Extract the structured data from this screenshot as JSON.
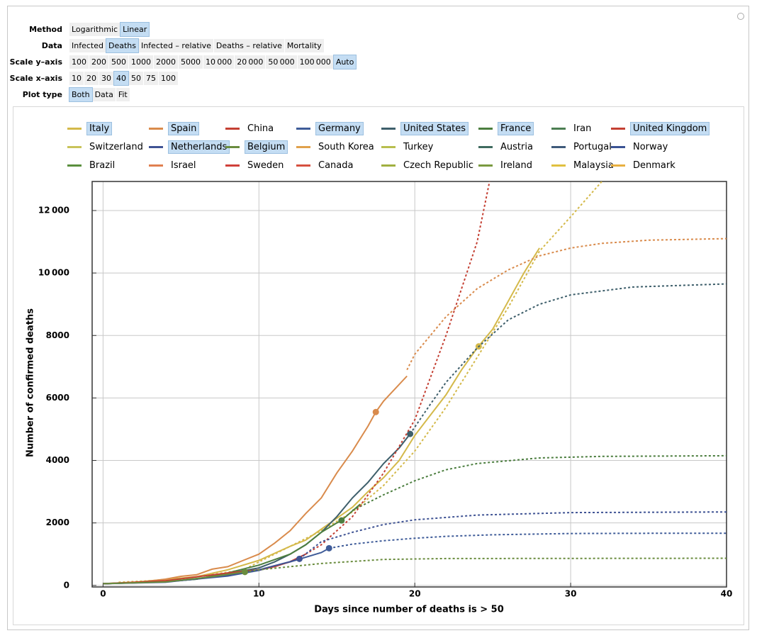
{
  "controls": [
    {
      "label": "Method",
      "options": [
        "Logarithmic",
        "Linear"
      ],
      "selected": 1
    },
    {
      "label": "Data",
      "options": [
        "Infected",
        "Deaths",
        "Infected – relative",
        "Deaths – relative",
        "Mortality"
      ],
      "selected": 1
    },
    {
      "label": "Scale y–axis",
      "options": [
        "100",
        "200",
        "500",
        "1000",
        "2000",
        "5000",
        "10 000",
        "20 000",
        "50 000",
        "100 000",
        "Auto"
      ],
      "selected": 10
    },
    {
      "label": "Scale x–axis",
      "options": [
        "10",
        "20",
        "30",
        "40",
        "50",
        "75",
        "100"
      ],
      "selected": 3
    },
    {
      "label": "Plot type",
      "options": [
        "Both",
        "Data",
        "Fit"
      ],
      "selected": 0
    }
  ],
  "chart_data": {
    "type": "line",
    "x_label": "Days since number of deaths is > 50",
    "y_label": "Number of confirmed deaths",
    "xlim": [
      -0.7,
      40
    ],
    "xticks": [
      0,
      10,
      20,
      30,
      40
    ],
    "ylim": [
      -50,
      12930
    ],
    "yticks": [
      0,
      2000,
      4000,
      6000,
      8000,
      {
        "value": 10000,
        "label": "10 000"
      },
      {
        "value": 12000,
        "label": "12 000"
      }
    ],
    "grid": true,
    "series": [
      {
        "name": "Italy",
        "color": "#d4b94a",
        "selected": true,
        "x": [
          0,
          2,
          4,
          6,
          8,
          10,
          12,
          13,
          14,
          15,
          16,
          17,
          18,
          19,
          20,
          21,
          22,
          23,
          24,
          25,
          26,
          27,
          28
        ],
        "values": [
          55,
          100,
          190,
          280,
          500,
          800,
          1250,
          1450,
          1800,
          2150,
          2500,
          3000,
          3450,
          4000,
          4800,
          5450,
          6100,
          6900,
          7600,
          8200,
          9100,
          10000,
          10800
        ],
        "fit_x": [
          1,
          5,
          9,
          12,
          14,
          16,
          18,
          20,
          22,
          24,
          26,
          28,
          30,
          32
        ],
        "fit": [
          100,
          200,
          500,
          1250,
          1750,
          2350,
          3200,
          4300,
          5700,
          7300,
          8900,
          10700,
          11800,
          12930
        ],
        "marker": [
          24.1,
          7650
        ]
      },
      {
        "name": "Spain",
        "color": "#d98b4c",
        "selected": true,
        "x": [
          0,
          2,
          4,
          5,
          6,
          7,
          8,
          9,
          10,
          11,
          12,
          13,
          14,
          15,
          16,
          17,
          17.5,
          18,
          19.5
        ],
        "values": [
          55,
          85,
          200,
          290,
          340,
          520,
          600,
          800,
          1000,
          1350,
          1750,
          2300,
          2800,
          3600,
          4300,
          5100,
          5550,
          5900,
          6700
        ],
        "fit_x": [
          19.5,
          20,
          22,
          24,
          26,
          28,
          30,
          32,
          35,
          40
        ],
        "fit": [
          6900,
          7400,
          8600,
          9500,
          10100,
          10550,
          10800,
          10950,
          11050,
          11100
        ],
        "marker": [
          17.5,
          5550
        ]
      },
      {
        "name": "China",
        "color": "#c44033",
        "selected": false
      },
      {
        "name": "Germany",
        "color": "#3f5c99",
        "selected": true,
        "x": [
          0,
          4,
          8,
          10,
          12,
          14,
          14.5
        ],
        "values": [
          55,
          110,
          300,
          480,
          750,
          1050,
          1190
        ],
        "fit_x": [
          14.5,
          16,
          18,
          20,
          22,
          25,
          30,
          35,
          40
        ],
        "fit": [
          1190,
          1320,
          1430,
          1510,
          1570,
          1620,
          1660,
          1668,
          1670
        ],
        "marker": [
          14.5,
          1190
        ]
      },
      {
        "name": "United States",
        "color": "#3e5f6b",
        "selected": true,
        "x": [
          0,
          4,
          6,
          8,
          10,
          11,
          12,
          13,
          14,
          15,
          16,
          17,
          18,
          19,
          19.7
        ],
        "values": [
          55,
          120,
          200,
          380,
          560,
          750,
          1000,
          1300,
          1700,
          2200,
          2800,
          3300,
          3900,
          4400,
          4850
        ],
        "fit_x": [
          19.7,
          21,
          22,
          24,
          26,
          28,
          30,
          34,
          40
        ],
        "fit": [
          4850,
          5800,
          6500,
          7600,
          8500,
          9000,
          9300,
          9550,
          9650
        ],
        "marker": [
          19.7,
          4850
        ]
      },
      {
        "name": "France",
        "color": "#4c7e3f",
        "selected": true,
        "x": [
          0,
          4,
          6,
          8,
          10,
          12,
          13,
          14,
          15,
          15.3,
          16.5
        ],
        "values": [
          55,
          120,
          200,
          400,
          650,
          1000,
          1300,
          1700,
          2000,
          2080,
          2600
        ],
        "fit_x": [
          16,
          18,
          20,
          22,
          24,
          28,
          32,
          40
        ],
        "fit": [
          2400,
          2900,
          3350,
          3700,
          3900,
          4080,
          4130,
          4150
        ],
        "marker": [
          15.3,
          2080
        ]
      },
      {
        "name": "Iran",
        "color": "#4c7e52",
        "selected": false
      },
      {
        "name": "United Kingdom",
        "color": "#c44033",
        "selected": true,
        "x": [
          0,
          4,
          8,
          10,
          11,
          12,
          13
        ],
        "values": [
          55,
          150,
          400,
          500,
          600,
          760,
          1000
        ],
        "fit_x": [
          13,
          14,
          16,
          18,
          20,
          22,
          24,
          24.8
        ],
        "fit": [
          1000,
          1300,
          2200,
          3600,
          5300,
          8000,
          11000,
          12930
        ]
      },
      {
        "name": "Switzerland",
        "color": "#c9c35a",
        "selected": false
      },
      {
        "name": "Netherlands",
        "color": "#3f5394",
        "selected": true,
        "x": [
          0,
          4,
          8,
          10,
          12,
          12.6
        ],
        "values": [
          55,
          100,
          320,
          500,
          760,
          850
        ],
        "fit_x": [
          12.6,
          14,
          16,
          18,
          20,
          24,
          30,
          40
        ],
        "fit": [
          850,
          1400,
          1700,
          1950,
          2100,
          2250,
          2330,
          2350
        ],
        "marker": [
          12.6,
          850
        ]
      },
      {
        "name": "Belgium",
        "color": "#6a8c3e",
        "selected": true,
        "x": [
          0,
          4,
          7,
          9.1
        ],
        "values": [
          55,
          110,
          280,
          430
        ],
        "fit_x": [
          9.1,
          10,
          14,
          18,
          22,
          40
        ],
        "fit": [
          430,
          500,
          700,
          830,
          860,
          870
        ],
        "marker": [
          9.1,
          430
        ]
      },
      {
        "name": "South Korea",
        "color": "#e0a14c",
        "selected": false
      },
      {
        "name": "Turkey",
        "color": "#b8be4e",
        "selected": false
      },
      {
        "name": "Austria",
        "color": "#3f6b5f",
        "selected": false
      },
      {
        "name": "Portugal",
        "color": "#3f5a7a",
        "selected": false
      },
      {
        "name": "Norway",
        "color": "#3a5394",
        "selected": false
      },
      {
        "name": "Brazil",
        "color": "#5a8f3e",
        "selected": false
      },
      {
        "name": "Israel",
        "color": "#e08050",
        "selected": false
      },
      {
        "name": "Sweden",
        "color": "#d0403a",
        "selected": false
      },
      {
        "name": "Canada",
        "color": "#d65040",
        "selected": false
      },
      {
        "name": "Czech Republic",
        "color": "#a0b040",
        "selected": false
      },
      {
        "name": "Ireland",
        "color": "#7a9a40",
        "selected": false
      },
      {
        "name": "Malaysia",
        "color": "#e0c040",
        "selected": false
      },
      {
        "name": "Denmark",
        "color": "#e8b040",
        "selected": false
      }
    ]
  }
}
